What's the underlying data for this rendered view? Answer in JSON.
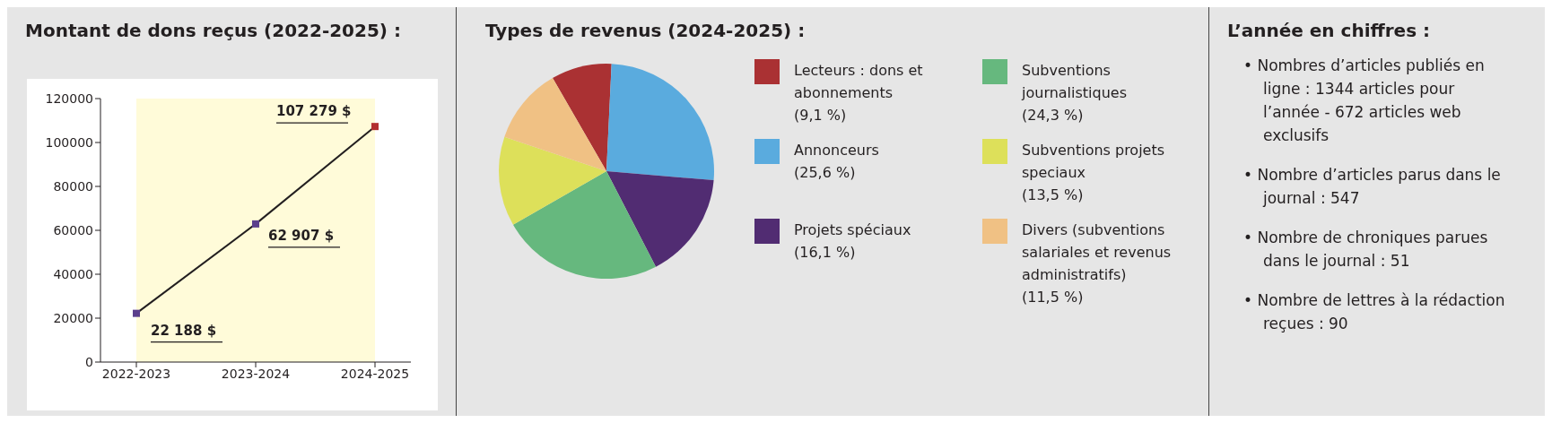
{
  "chart_data": [
    {
      "type": "line",
      "title": "Montant de dons reçus (2022-2025) :",
      "categories": [
        "2022-2023",
        "2023-2024",
        "2024-2025"
      ],
      "values": [
        22188,
        62907,
        107279
      ],
      "color": "#231f20",
      "colors": [
        "#5b3f8c",
        "#5b3f8c",
        "#b22f30"
      ],
      "value_labels": [
        "22 188 $",
        "62 907 $",
        "107 279  $"
      ],
      "ylim": [
        0,
        120000
      ],
      "yticks": [
        0,
        20000,
        40000,
        60000,
        80000,
        100000,
        120000
      ],
      "marker": "square"
    },
    {
      "type": "pie",
      "title": "Types de revenus (2024-2025) :",
      "categories": [
        "Lecteurs : dons et abonnements",
        "Annonceurs",
        "Projets spéciaux",
        "Subventions journalistiques",
        "Subventions projets speciaux",
        "Divers (subventions salariales et revenus administratifs)"
      ],
      "values": [
        9.1,
        25.6,
        16.1,
        24.3,
        13.5,
        11.5
      ],
      "colors": [
        "#aa3133",
        "#5aabde",
        "#512c72",
        "#66b87e",
        "#dde05a",
        "#f0c184"
      ],
      "value_labels": [
        "(9,1 %)",
        "(25,6 %)",
        "(16,1 %)",
        "(24,3 %)",
        "(13,5 %)",
        "(11,5 %)"
      ],
      "legend": "right"
    },
    {
      "type": "other",
      "title": "L’année en chiffres :",
      "annotations": [
        "•  Nombres d’articles publiés en ligne : 1344 articles pour l’année - 672 articles web exclusifs",
        "•  Nombre d’articles parus dans le journal : 547",
        "•  Nombre de chroniques parues dans le journal : 51",
        "•  Nombre de lettres à la rédaction reçues : 90"
      ]
    }
  ]
}
